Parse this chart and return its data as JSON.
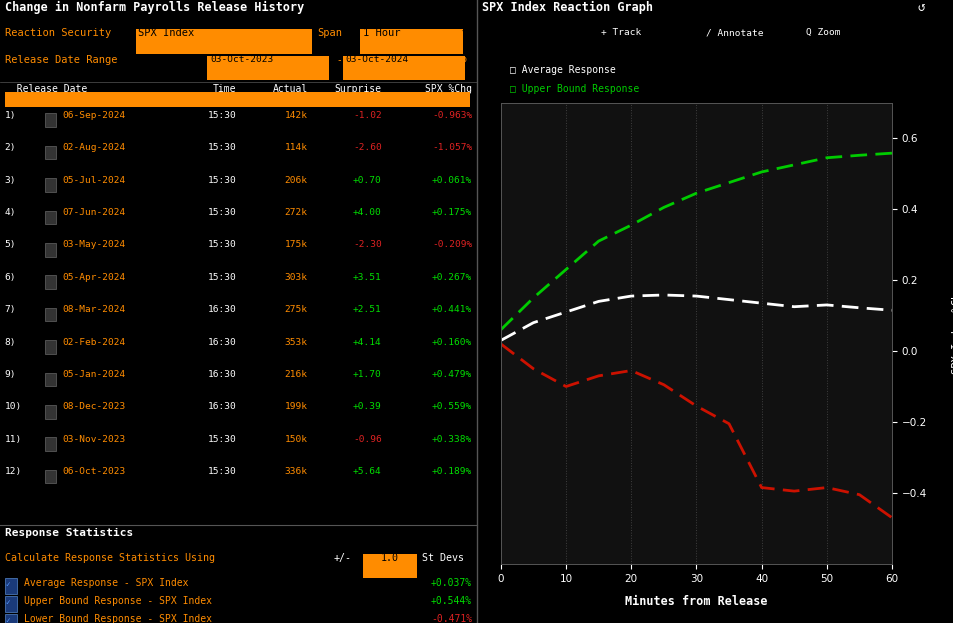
{
  "bg_color": "#000000",
  "title_left": "Change in Nonfarm Payrolls Release History",
  "title_right": "SPX Index Reaction Graph",
  "orange_color": "#ff8c00",
  "green_color": "#00cc00",
  "red_color": "#cc2200",
  "table_rows": [
    [
      "1)",
      "06-Sep-2024",
      "15:30",
      "142k",
      "-1.02",
      "-0.963%",
      "red",
      "red"
    ],
    [
      "2)",
      "02-Aug-2024",
      "15:30",
      "114k",
      "-2.60",
      "-1.057%",
      "red",
      "red"
    ],
    [
      "3)",
      "05-Jul-2024",
      "15:30",
      "206k",
      "+0.70",
      "+0.061%",
      "green",
      "green"
    ],
    [
      "4)",
      "07-Jun-2024",
      "15:30",
      "272k",
      "+4.00",
      "+0.175%",
      "green",
      "green"
    ],
    [
      "5)",
      "03-May-2024",
      "15:30",
      "175k",
      "-2.30",
      "-0.209%",
      "red",
      "red"
    ],
    [
      "6)",
      "05-Apr-2024",
      "15:30",
      "303k",
      "+3.51",
      "+0.267%",
      "green",
      "green"
    ],
    [
      "7)",
      "08-Mar-2024",
      "16:30",
      "275k",
      "+2.51",
      "+0.441%",
      "green",
      "green"
    ],
    [
      "8)",
      "02-Feb-2024",
      "16:30",
      "353k",
      "+4.14",
      "+0.160%",
      "green",
      "green"
    ],
    [
      "9)",
      "05-Jan-2024",
      "16:30",
      "216k",
      "+1.70",
      "+0.479%",
      "green",
      "green"
    ],
    [
      "10)",
      "08-Dec-2023",
      "16:30",
      "199k",
      "+0.39",
      "+0.559%",
      "green",
      "green"
    ],
    [
      "11)",
      "03-Nov-2023",
      "15:30",
      "150k",
      "-0.96",
      "+0.338%",
      "red",
      "green"
    ],
    [
      "12)",
      "06-Oct-2023",
      "15:30",
      "336k",
      "+5.64",
      "+0.189%",
      "green",
      "green"
    ]
  ],
  "stats_avg_label": "Average Response - SPX Index",
  "stats_avg_val": "+0.037%",
  "stats_upper_label": "Upper Bound Response - SPX Index",
  "stats_upper_val": "+0.544%",
  "stats_lower_label": "Lower Bound Response - SPX Index",
  "stats_lower_val": "-0.471%",
  "minutes": [
    0,
    5,
    10,
    15,
    20,
    25,
    30,
    35,
    40,
    45,
    50,
    55,
    60
  ],
  "avg_response": [
    0.03,
    0.08,
    0.11,
    0.14,
    0.155,
    0.158,
    0.155,
    0.145,
    0.135,
    0.125,
    0.13,
    0.122,
    0.115
  ],
  "upper_response": [
    0.06,
    0.15,
    0.23,
    0.31,
    0.355,
    0.405,
    0.445,
    0.475,
    0.505,
    0.525,
    0.545,
    0.552,
    0.558
  ],
  "lower_response": [
    0.02,
    -0.05,
    -0.1,
    -0.07,
    -0.055,
    -0.095,
    -0.155,
    -0.205,
    -0.385,
    -0.395,
    -0.385,
    -0.405,
    -0.47
  ],
  "ylim": [
    -0.6,
    0.7
  ],
  "yticks": [
    -0.4,
    -0.2,
    0.0,
    0.2,
    0.4,
    0.6
  ],
  "xticks": [
    0,
    10,
    20,
    30,
    40,
    50,
    60
  ]
}
